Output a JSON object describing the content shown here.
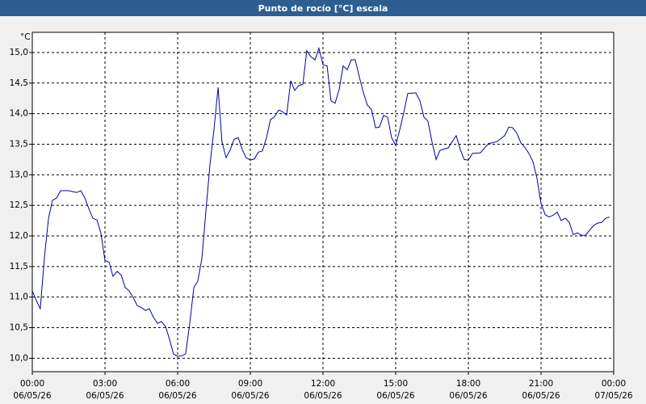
{
  "chart_data": {
    "type": "line",
    "title": "Punto de rocío [°C] escala",
    "y_unit": "°C",
    "x": [
      0,
      0.17,
      0.33,
      0.5,
      0.67,
      0.83,
      1,
      1.17,
      1.5,
      1.83,
      2,
      2.17,
      2.33,
      2.5,
      2.67,
      2.83,
      3,
      3.17,
      3.33,
      3.5,
      3.67,
      3.83,
      4,
      4.17,
      4.33,
      4.5,
      4.67,
      4.83,
      5,
      5.17,
      5.33,
      5.5,
      5.67,
      5.83,
      6,
      6.17,
      6.33,
      6.5,
      6.67,
      6.83,
      7,
      7.17,
      7.33,
      7.5,
      7.67,
      7.83,
      8,
      8.17,
      8.33,
      8.5,
      8.67,
      8.83,
      9,
      9.17,
      9.33,
      9.5,
      9.67,
      9.83,
      10,
      10.17,
      10.33,
      10.5,
      10.67,
      10.83,
      11,
      11.17,
      11.33,
      11.5,
      11.67,
      11.83,
      12,
      12.17,
      12.33,
      12.5,
      12.67,
      12.83,
      13,
      13.17,
      13.33,
      13.5,
      13.67,
      13.83,
      14,
      14.17,
      14.33,
      14.5,
      14.67,
      14.83,
      15,
      15.17,
      15.33,
      15.5,
      15.83,
      16,
      16.17,
      16.33,
      16.5,
      16.67,
      16.83,
      17.17,
      17.33,
      17.5,
      17.67,
      17.83,
      18,
      18.17,
      18.5,
      18.67,
      18.83,
      19.17,
      19.5,
      19.67,
      19.83,
      20,
      20.17,
      20.33,
      20.5,
      20.67,
      20.83,
      21,
      21.17,
      21.33,
      21.5,
      21.67,
      21.83,
      22,
      22.17,
      22.33,
      22.5,
      22.67,
      22.83,
      23,
      23.17,
      23.33,
      23.5,
      23.67,
      23.83
    ],
    "values": [
      11.1,
      10.94,
      10.81,
      11.65,
      12.29,
      12.58,
      12.62,
      12.74,
      12.74,
      12.71,
      12.74,
      12.62,
      12.45,
      12.29,
      12.26,
      12.05,
      11.6,
      11.57,
      11.34,
      11.42,
      11.36,
      11.16,
      11.1,
      10.99,
      10.86,
      10.83,
      10.78,
      10.81,
      10.67,
      10.57,
      10.6,
      10.52,
      10.3,
      10.07,
      10.03,
      10.04,
      10.07,
      10.57,
      11.16,
      11.26,
      11.63,
      12.42,
      13.15,
      13.74,
      14.43,
      13.54,
      13.28,
      13.41,
      13.58,
      13.61,
      13.41,
      13.28,
      13.24,
      13.26,
      13.37,
      13.39,
      13.61,
      13.9,
      13.95,
      14.06,
      14.03,
      13.98,
      14.54,
      14.38,
      14.46,
      14.48,
      15.03,
      14.93,
      14.88,
      15.07,
      14.8,
      14.78,
      14.21,
      14.17,
      14.4,
      14.78,
      14.72,
      14.88,
      14.88,
      14.6,
      14.34,
      14.14,
      14.07,
      13.77,
      13.78,
      13.97,
      13.94,
      13.61,
      13.48,
      13.74,
      14.01,
      14.33,
      14.34,
      14.21,
      13.94,
      13.88,
      13.54,
      13.25,
      13.4,
      13.44,
      13.54,
      13.64,
      13.41,
      13.25,
      13.24,
      13.35,
      13.36,
      13.44,
      13.51,
      13.54,
      13.64,
      13.78,
      13.77,
      13.68,
      13.52,
      13.45,
      13.35,
      13.21,
      12.95,
      12.53,
      12.35,
      12.31,
      12.34,
      12.39,
      12.25,
      12.29,
      12.22,
      12.02,
      12.05,
      12.01,
      12.01,
      12.09,
      12.17,
      12.21,
      12.22,
      12.29,
      12.31
    ],
    "color": "#0000a0",
    "xlim": [
      0,
      24
    ],
    "xticks": [
      {
        "value": 0,
        "label": "00:00",
        "date": "06/05/26"
      },
      {
        "value": 3,
        "label": "03:00",
        "date": "06/05/26"
      },
      {
        "value": 6,
        "label": "06:00",
        "date": "06/05/26"
      },
      {
        "value": 9,
        "label": "09:00",
        "date": "06/05/26"
      },
      {
        "value": 12,
        "label": "12:00",
        "date": "06/05/26"
      },
      {
        "value": 15,
        "label": "15:00",
        "date": "06/05/26"
      },
      {
        "value": 18,
        "label": "18:00",
        "date": "06/05/26"
      },
      {
        "value": 21,
        "label": "21:00",
        "date": "06/05/26"
      },
      {
        "value": 24,
        "label": "00:00",
        "date": "07/05/26"
      }
    ],
    "ylim": [
      9.78,
      15.33
    ],
    "yticks": [
      {
        "value": 10,
        "label": "10,0"
      },
      {
        "value": 10.5,
        "label": "10,5"
      },
      {
        "value": 11,
        "label": "11,0"
      },
      {
        "value": 11.5,
        "label": "11,5"
      },
      {
        "value": 12,
        "label": "12,0"
      },
      {
        "value": 12.5,
        "label": "12,5"
      },
      {
        "value": 13,
        "label": "13,0"
      },
      {
        "value": 13.5,
        "label": "13,5"
      },
      {
        "value": 14,
        "label": "14,0"
      },
      {
        "value": 14.5,
        "label": "14,5"
      },
      {
        "value": 15,
        "label": "15,0"
      }
    ],
    "grid": true
  }
}
